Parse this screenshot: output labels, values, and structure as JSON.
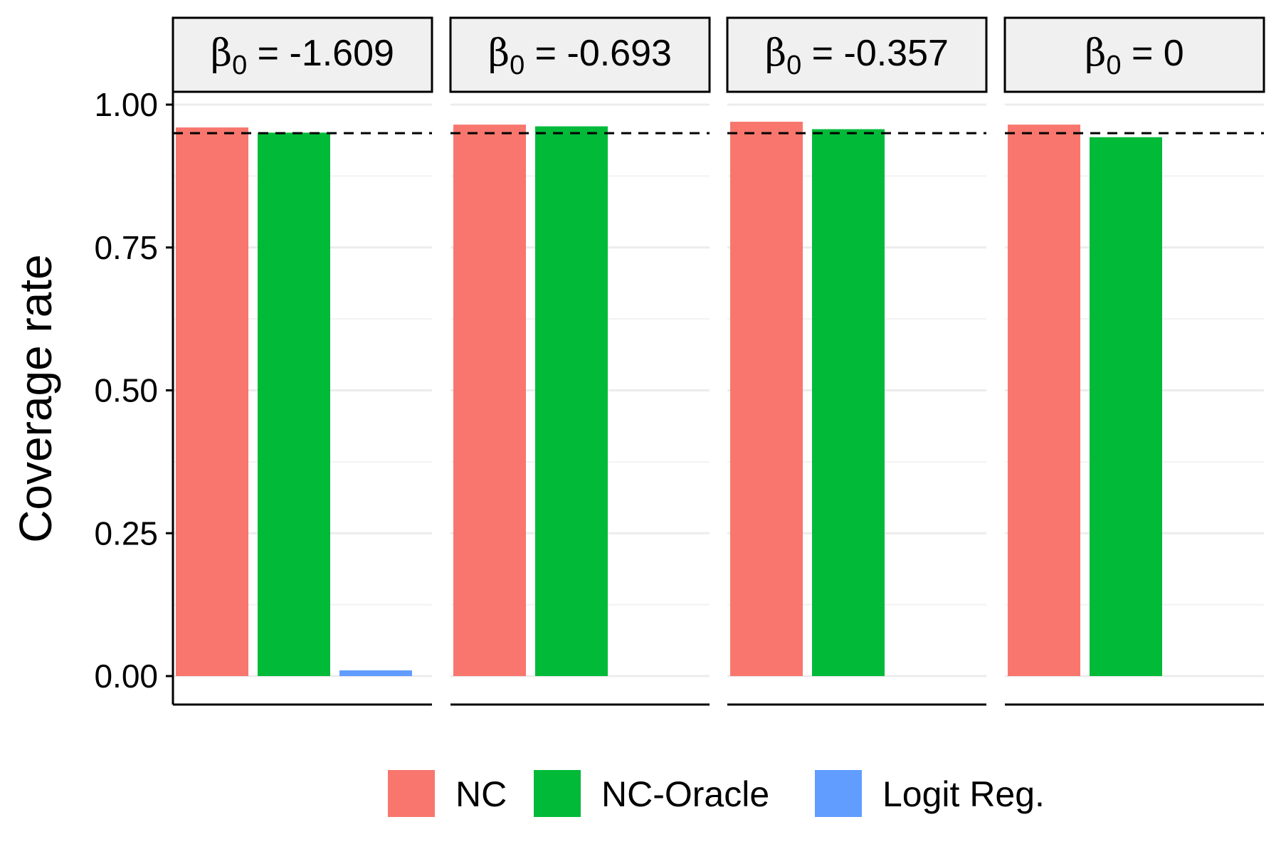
{
  "chart_data": {
    "type": "bar",
    "ylabel": "Coverage rate",
    "ylim": [
      0,
      1.05
    ],
    "yticks": [
      "0.00",
      "0.25",
      "0.50",
      "0.75",
      "1.00"
    ],
    "reference_line": {
      "y": 0.95,
      "style": "dashed"
    },
    "grid": "horizontal-major-and-minor",
    "legend_position": "bottom",
    "series": [
      {
        "name": "NC",
        "color": "#F8766D"
      },
      {
        "name": "NC-Oracle",
        "color": "#00BA38"
      },
      {
        "name": "Logit Reg.",
        "color": "#619CFF"
      }
    ],
    "panels": [
      {
        "symbol": "β",
        "subscript": "0",
        "eq": " = ",
        "value": "-1.609",
        "values": [
          0.96,
          0.951,
          0.01
        ]
      },
      {
        "symbol": "β",
        "subscript": "0",
        "eq": " = ",
        "value": "-0.693",
        "values": [
          0.965,
          0.962,
          0.0
        ]
      },
      {
        "symbol": "β",
        "subscript": "0",
        "eq": " = ",
        "value": "-0.357",
        "values": [
          0.97,
          0.957,
          0.0
        ]
      },
      {
        "symbol": "β",
        "subscript": "0",
        "eq": " = ",
        "value": "0",
        "values": [
          0.965,
          0.943,
          0.0
        ]
      }
    ]
  }
}
